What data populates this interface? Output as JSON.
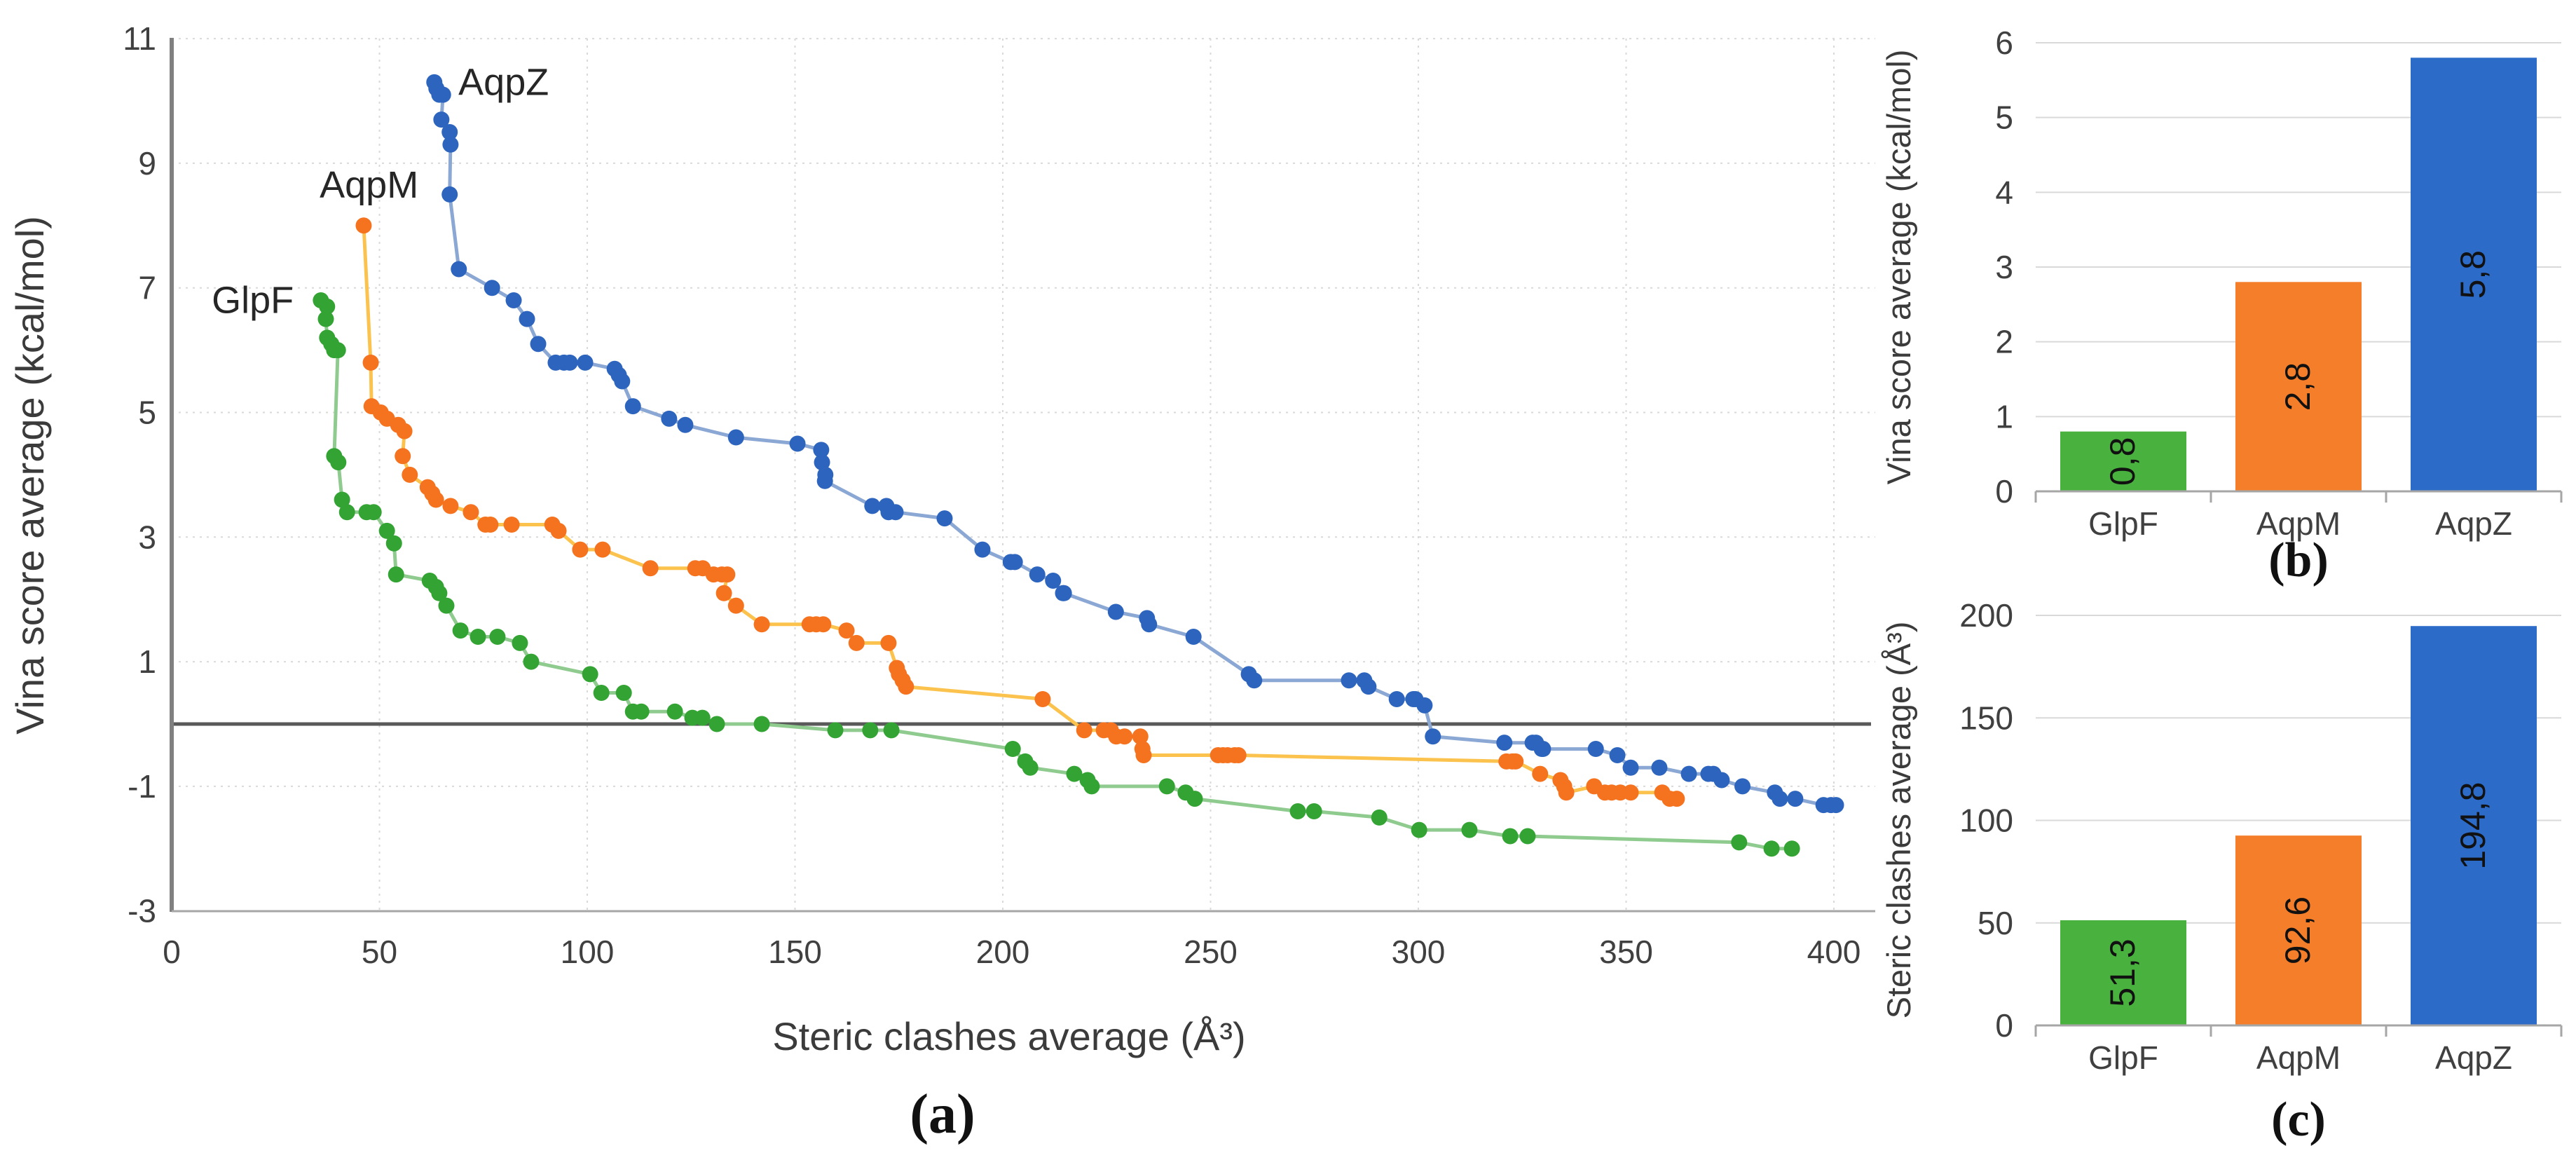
{
  "figure": {
    "captions": {
      "a": "(a)",
      "b": "(b)",
      "c": "(c)"
    }
  },
  "chart_data": [
    {
      "id": "a",
      "type": "scatter",
      "xlabel": "Steric clashes average (Å³)",
      "ylabel": "Vina score average (kcal/mol)",
      "xlim": [
        0,
        410
      ],
      "ylim": [
        -3,
        11
      ],
      "xticks": [
        0,
        50,
        100,
        150,
        200,
        250,
        300,
        350,
        400
      ],
      "yticks": [
        11,
        9,
        7,
        5,
        3,
        1,
        -1,
        -3
      ],
      "grid": "dotted",
      "zero_line_y": 0,
      "annotations": [
        {
          "text": "GlpF",
          "x": 19.5,
          "y": 6.8,
          "anchor": "middle"
        },
        {
          "text": "AqpM",
          "x": 47.5,
          "y": 8.65,
          "anchor": "middle"
        },
        {
          "text": "AqpZ",
          "x": 69,
          "y": 10.3,
          "anchor": "start"
        }
      ],
      "series": [
        {
          "name": "GlpF",
          "marker_color": "#33A333",
          "line_color": "#8FCB8F",
          "points": [
            [
              35.9,
              6.8
            ],
            [
              37.4,
              6.7
            ],
            [
              37.1,
              6.5
            ],
            [
              37.4,
              6.2
            ],
            [
              38.4,
              6.1
            ],
            [
              39.1,
              6.0
            ],
            [
              40,
              6.0
            ],
            [
              39.1,
              4.3
            ],
            [
              40.1,
              4.2
            ],
            [
              41,
              3.6
            ],
            [
              42.2,
              3.4
            ],
            [
              46.9,
              3.4
            ],
            [
              48.6,
              3.4
            ],
            [
              51.8,
              3.1
            ],
            [
              53.5,
              2.9
            ],
            [
              54,
              2.4
            ],
            [
              62.1,
              2.3
            ],
            [
              63.6,
              2.2
            ],
            [
              64.4,
              2.1
            ],
            [
              66.1,
              1.9
            ],
            [
              69.5,
              1.5
            ],
            [
              73.7,
              1.4
            ],
            [
              78.4,
              1.4
            ],
            [
              83.8,
              1.3
            ],
            [
              86.5,
              1.0
            ],
            [
              100.7,
              0.8
            ],
            [
              103.4,
              0.5
            ],
            [
              108.8,
              0.5
            ],
            [
              111,
              0.2
            ],
            [
              113,
              0.2
            ],
            [
              121.1,
              0.2
            ],
            [
              125.3,
              0.1
            ],
            [
              127.7,
              0.1
            ],
            [
              131.2,
              0.0
            ],
            [
              142,
              0.0
            ],
            [
              159.7,
              -0.1
            ],
            [
              168.1,
              -0.1
            ],
            [
              173.2,
              -0.1
            ],
            [
              202.4,
              -0.4
            ],
            [
              205.4,
              -0.6
            ],
            [
              206.6,
              -0.7
            ],
            [
              217.2,
              -0.8
            ],
            [
              220.4,
              -0.9
            ],
            [
              221.4,
              -1.0
            ],
            [
              239.5,
              -1.0
            ],
            [
              244,
              -1.1
            ],
            [
              246.2,
              -1.2
            ],
            [
              271,
              -1.4
            ],
            [
              274.9,
              -1.4
            ],
            [
              290.6,
              -1.5
            ],
            [
              300.2,
              -1.7
            ],
            [
              312.3,
              -1.7
            ],
            [
              322.1,
              -1.8
            ],
            [
              326.3,
              -1.8
            ],
            [
              377.2,
              -1.9
            ],
            [
              385,
              -2.0
            ],
            [
              389.9,
              -2.0
            ]
          ]
        },
        {
          "name": "AqpM",
          "marker_color": "#F5731F",
          "line_color": "#FBC34D",
          "points": [
            [
              46.2,
              8.0
            ],
            [
              47.9,
              5.8
            ],
            [
              48.1,
              5.1
            ],
            [
              50.3,
              5.0
            ],
            [
              51.8,
              4.9
            ],
            [
              54.5,
              4.8
            ],
            [
              56,
              4.7
            ],
            [
              55.6,
              4.3
            ],
            [
              57.3,
              4.0
            ],
            [
              61.6,
              3.8
            ],
            [
              62.7,
              3.7
            ],
            [
              63.6,
              3.6
            ],
            [
              67.1,
              3.5
            ],
            [
              72,
              3.4
            ],
            [
              75.5,
              3.2
            ],
            [
              76.7,
              3.2
            ],
            [
              81.8,
              3.2
            ],
            [
              91.6,
              3.2
            ],
            [
              93.1,
              3.1
            ],
            [
              98.3,
              2.8
            ],
            [
              103.7,
              2.8
            ],
            [
              115.2,
              2.5
            ],
            [
              126,
              2.5
            ],
            [
              127.8,
              2.5
            ],
            [
              130.4,
              2.4
            ],
            [
              132.4,
              2.4
            ],
            [
              133.7,
              2.4
            ],
            [
              132.9,
              2.1
            ],
            [
              135.8,
              1.9
            ],
            [
              142,
              1.6
            ],
            [
              153.5,
              1.6
            ],
            [
              155.1,
              1.6
            ],
            [
              156.8,
              1.6
            ],
            [
              162.4,
              1.5
            ],
            [
              164.8,
              1.3
            ],
            [
              172.5,
              1.3
            ],
            [
              174.5,
              0.9
            ],
            [
              175,
              0.8
            ],
            [
              175.9,
              0.7
            ],
            [
              176.7,
              0.6
            ],
            [
              209.6,
              0.4
            ],
            [
              219.6,
              -0.1
            ],
            [
              224.3,
              -0.1
            ],
            [
              226,
              -0.1
            ],
            [
              227.3,
              -0.2
            ],
            [
              229.3,
              -0.2
            ],
            [
              233.1,
              -0.2
            ],
            [
              233.6,
              -0.4
            ],
            [
              233.9,
              -0.5
            ],
            [
              251.8,
              -0.5
            ],
            [
              253,
              -0.5
            ],
            [
              254.1,
              -0.5
            ],
            [
              255.8,
              -0.5
            ],
            [
              256.7,
              -0.5
            ],
            [
              321.2,
              -0.6
            ],
            [
              322.6,
              -0.6
            ],
            [
              323.4,
              -0.6
            ],
            [
              329.3,
              -0.8
            ],
            [
              334.2,
              -0.9
            ],
            [
              335.1,
              -1.0
            ],
            [
              335.6,
              -1.1
            ],
            [
              342.3,
              -1.0
            ],
            [
              344.9,
              -1.1
            ],
            [
              346.5,
              -1.1
            ],
            [
              348.6,
              -1.1
            ],
            [
              351.1,
              -1.1
            ],
            [
              358.7,
              -1.1
            ],
            [
              360.5,
              -1.2
            ],
            [
              362.2,
              -1.2
            ]
          ]
        },
        {
          "name": "AqpZ",
          "marker_color": "#2D65BE",
          "line_color": "#8BA7D4",
          "points": [
            [
              63.2,
              10.3
            ],
            [
              63.7,
              10.2
            ],
            [
              64.4,
              10.1
            ],
            [
              65.3,
              10.1
            ],
            [
              64.9,
              9.7
            ],
            [
              66.9,
              9.5
            ],
            [
              67.1,
              9.3
            ],
            [
              66.9,
              8.5
            ],
            [
              69.1,
              7.3
            ],
            [
              77.1,
              7.0
            ],
            [
              82.3,
              6.8
            ],
            [
              85.5,
              6.5
            ],
            [
              88.2,
              6.1
            ],
            [
              92.4,
              5.8
            ],
            [
              94.4,
              5.8
            ],
            [
              95.8,
              5.8
            ],
            [
              99.5,
              5.8
            ],
            [
              106.6,
              5.7
            ],
            [
              107.6,
              5.6
            ],
            [
              108.4,
              5.5
            ],
            [
              111,
              5.1
            ],
            [
              119.7,
              4.9
            ],
            [
              123.6,
              4.8
            ],
            [
              135.8,
              4.6
            ],
            [
              150.6,
              4.5
            ],
            [
              156.3,
              4.4
            ],
            [
              156.5,
              4.2
            ],
            [
              157.3,
              4.0
            ],
            [
              157.2,
              3.9
            ],
            [
              168.6,
              3.5
            ],
            [
              172,
              3.5
            ],
            [
              172.5,
              3.4
            ],
            [
              174.2,
              3.4
            ],
            [
              186,
              3.3
            ],
            [
              195.1,
              2.8
            ],
            [
              201.9,
              2.6
            ],
            [
              202.9,
              2.6
            ],
            [
              208.3,
              2.4
            ],
            [
              212.1,
              2.3
            ],
            [
              214.5,
              2.1
            ],
            [
              214.7,
              2.1
            ],
            [
              227.2,
              1.8
            ],
            [
              234.7,
              1.7
            ],
            [
              235.2,
              1.6
            ],
            [
              245.9,
              1.4
            ],
            [
              259.2,
              0.8
            ],
            [
              260.5,
              0.7
            ],
            [
              283.3,
              0.7
            ],
            [
              287,
              0.7
            ],
            [
              288,
              0.6
            ],
            [
              294.8,
              0.4
            ],
            [
              298.8,
              0.4
            ],
            [
              299.3,
              0.4
            ],
            [
              301.5,
              0.3
            ],
            [
              303.5,
              -0.2
            ],
            [
              320.7,
              -0.3
            ],
            [
              327.5,
              -0.3
            ],
            [
              328.3,
              -0.3
            ],
            [
              329.7,
              -0.4
            ],
            [
              330,
              -0.4
            ],
            [
              342.7,
              -0.4
            ],
            [
              347.9,
              -0.5
            ],
            [
              351.1,
              -0.7
            ],
            [
              358,
              -0.7
            ],
            [
              365.1,
              -0.8
            ],
            [
              369.8,
              -0.8
            ],
            [
              371,
              -0.8
            ],
            [
              373,
              -0.9
            ],
            [
              378,
              -1.0
            ],
            [
              385.8,
              -1.1
            ],
            [
              387,
              -1.2
            ],
            [
              390.7,
              -1.2
            ],
            [
              397.5,
              -1.3
            ],
            [
              399.3,
              -1.3
            ],
            [
              400.5,
              -1.3
            ]
          ]
        }
      ]
    },
    {
      "id": "b",
      "type": "bar",
      "ylabel": "Vina score average (kcal/mol)",
      "categories": [
        "GlpF",
        "AqpM",
        "AqpZ"
      ],
      "values": [
        0.8,
        2.8,
        5.8
      ],
      "value_labels": [
        "0,8",
        "2,8",
        "5,8"
      ],
      "bar_colors": [
        "#49B23E",
        "#F57E2A",
        "#2D6BC8"
      ],
      "ylim": [
        0,
        6
      ],
      "yticks": [
        0,
        1,
        2,
        3,
        4,
        5,
        6
      ],
      "grid": "solid"
    },
    {
      "id": "c",
      "type": "bar",
      "ylabel": "Steric clashes average (Å³)",
      "categories": [
        "GlpF",
        "AqpM",
        "AqpZ"
      ],
      "values": [
        51.3,
        92.6,
        194.8
      ],
      "value_labels": [
        "51,3",
        "92,6",
        "194,8"
      ],
      "bar_colors": [
        "#49B23E",
        "#F57E2A",
        "#2D6BC8"
      ],
      "ylim": [
        0,
        200
      ],
      "yticks": [
        0,
        50,
        100,
        150,
        200
      ],
      "grid": "solid"
    }
  ]
}
